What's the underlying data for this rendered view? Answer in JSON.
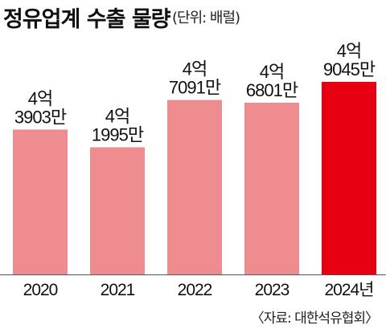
{
  "title": "정유업계 수출 물량",
  "unit": "(단위: 배럴)",
  "source": "〈자료: 대한석유협회〉",
  "colors": {
    "bar": "#ee8c90",
    "highlight": "#e60012",
    "axis": "#555555"
  },
  "chart_data": {
    "type": "bar",
    "categories": [
      "2020",
      "2021",
      "2022",
      "2023",
      "2024년"
    ],
    "values": [
      439030000,
      419950000,
      470910000,
      468010000,
      490450000
    ],
    "data_labels": [
      [
        "4억",
        "3903만"
      ],
      [
        "4억",
        "1995만"
      ],
      [
        "4억",
        "7091만"
      ],
      [
        "4억",
        "6801만"
      ],
      [
        "4억",
        "9045만"
      ]
    ],
    "highlight_index": 4,
    "title": "정유업계 수출 물량",
    "xlabel": "",
    "ylabel": "",
    "grid": false
  }
}
